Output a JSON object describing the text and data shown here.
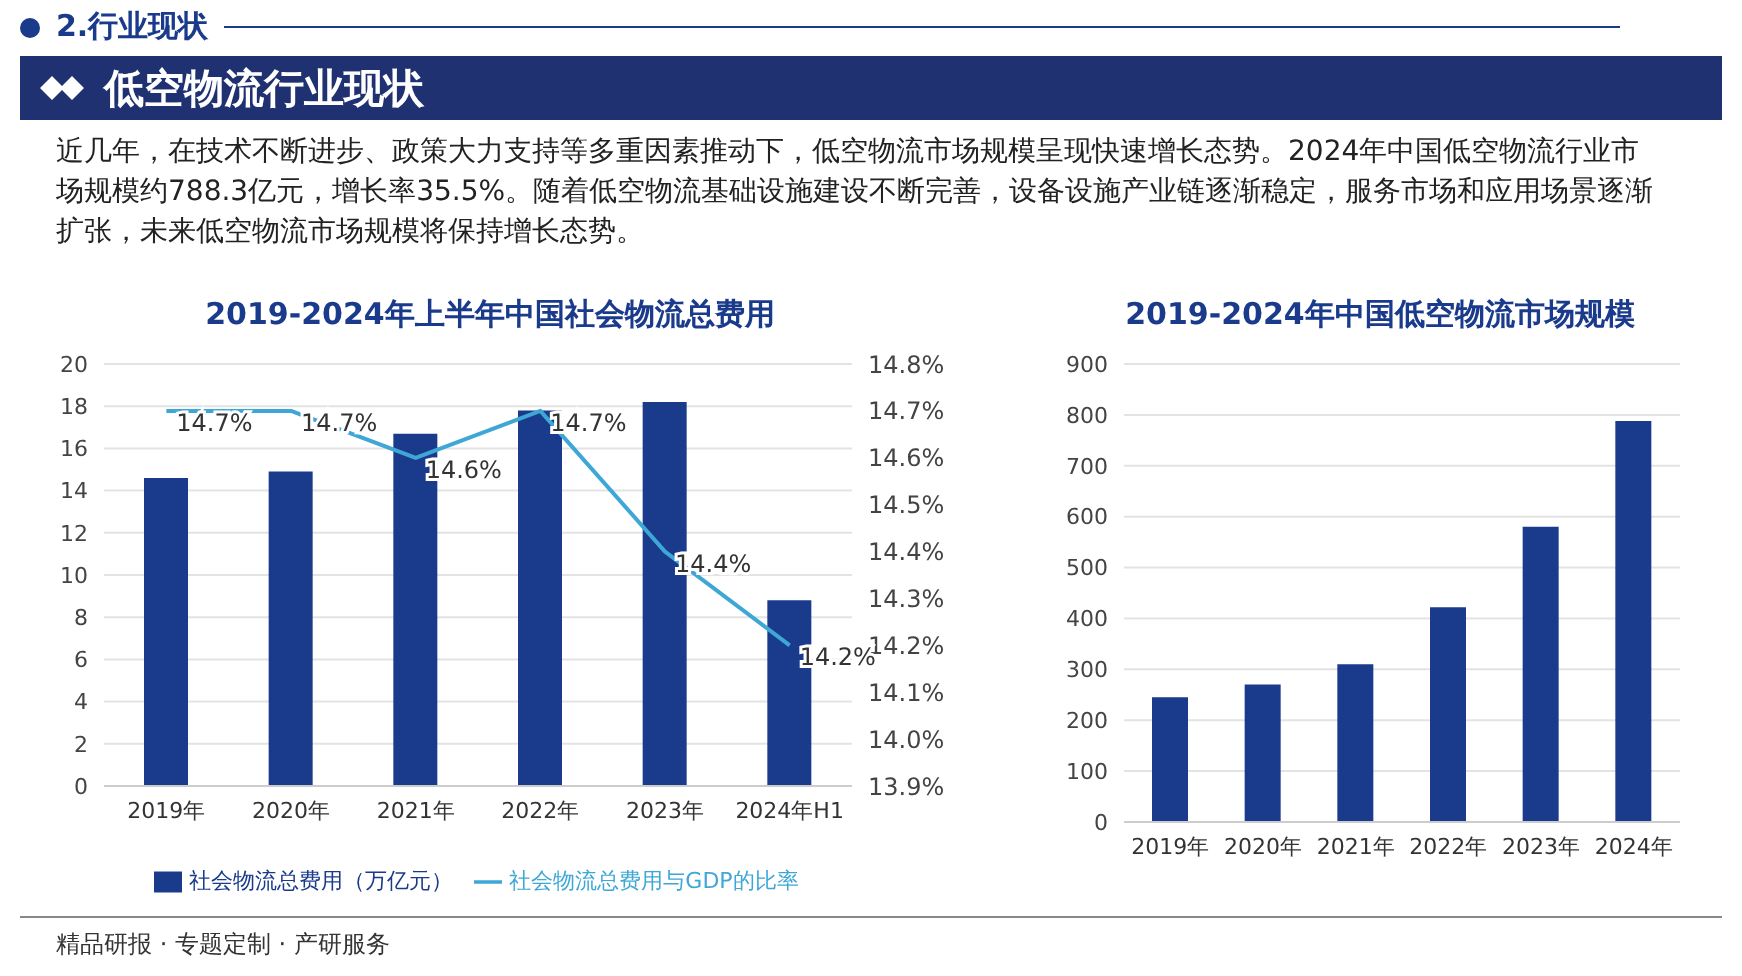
{
  "chart_data": [
    {
      "type": "bar",
      "title": "2019-2024年上半年中国社会物流总费用",
      "annotations": [
        "2.行业现状",
        "低空物流行业现状",
        "近几年，在技术不断进步、政策大力支持等多重因素推动下，低空物流市场规模呈现快速增长态势。2024年中国低空物流行业市场规模约788.3亿元，增长率35.5%。随着低空物流基础设施建设不断完善，设备设施产业链逐渐稳定，服务市场和应用场景逐渐扩张，未来低空物流市场规模将保持增长态势。",
        "精品研报 · 专题定制 · 产研服务"
      ],
      "categories": [
        "2019年",
        "2020年",
        "2021年",
        "2022年",
        "2023年",
        "2024年H1"
      ],
      "series": [
        {
          "name": "社会物流总费用（万亿元）",
          "color": "#1a3a8c",
          "values": [
            14.6,
            14.9,
            16.7,
            17.8,
            18.2,
            8.8
          ]
        },
        {
          "name": "社会物流总费用与GDP的比率",
          "type": "line",
          "axis": "y2",
          "color": "#3fa7d6",
          "values": [
            14.7,
            14.7,
            14.6,
            14.7,
            14.4,
            14.2
          ],
          "value_labels": [
            "14.7%",
            "14.7%",
            "14.6%",
            "14.7%",
            "14.4%",
            "14.2%"
          ]
        }
      ],
      "ylim": [
        0,
        20
      ],
      "yticks": [
        0,
        2,
        4,
        6,
        8,
        10,
        12,
        14,
        16,
        18,
        20
      ],
      "y2lim": [
        13.9,
        14.8
      ],
      "y2ticks": [
        {
          "value": 13.9,
          "label": "13.9%"
        },
        {
          "value": 14.0,
          "label": "14.0%"
        },
        {
          "value": 14.1,
          "label": "14.1%"
        },
        {
          "value": 14.2,
          "label": "14.2%"
        },
        {
          "value": 14.3,
          "label": "14.3%"
        },
        {
          "value": 14.4,
          "label": "14.4%"
        },
        {
          "value": 14.5,
          "label": "14.5%"
        },
        {
          "value": 14.6,
          "label": "14.6%"
        },
        {
          "value": 14.7,
          "label": "14.7%"
        },
        {
          "value": 14.8,
          "label": "14.8%"
        }
      ],
      "grid": "y",
      "legend": "bottom"
    },
    {
      "type": "bar",
      "title": "2019-2024年中国低空物流市场规模",
      "categories": [
        "2019年",
        "2020年",
        "2021年",
        "2022年",
        "2023年",
        "2024年"
      ],
      "series": [
        {
          "color": "#1a3a8c",
          "values": [
            245,
            270,
            310,
            422,
            580,
            788
          ]
        }
      ],
      "ylim": [
        0,
        900
      ],
      "yticks": [
        0,
        100,
        200,
        300,
        400,
        500,
        600,
        700,
        800,
        900
      ],
      "grid": "y"
    }
  ]
}
